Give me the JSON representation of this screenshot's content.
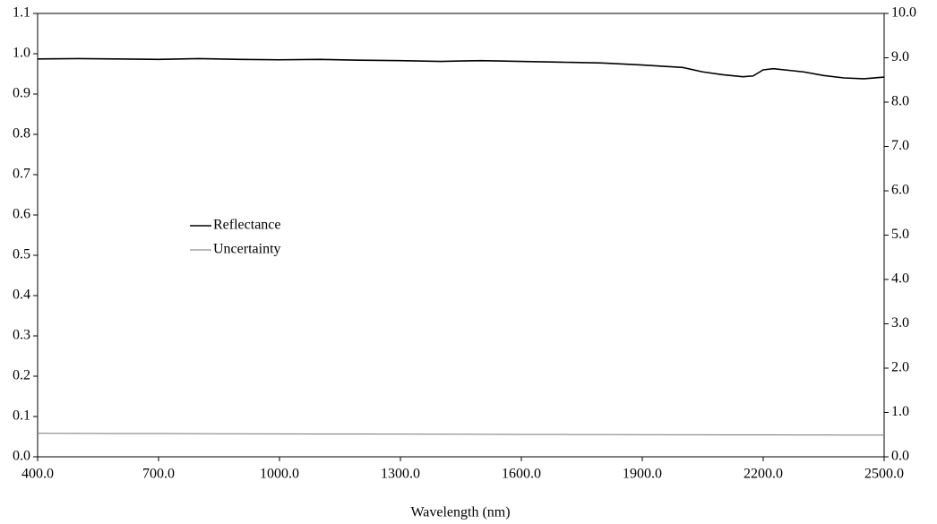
{
  "chart_data": {
    "type": "line",
    "xlabel": "Wavelength (nm)",
    "x": [
      400,
      500,
      600,
      700,
      800,
      900,
      1000,
      1100,
      1200,
      1300,
      1400,
      1500,
      1600,
      1700,
      1800,
      1900,
      2000,
      2050,
      2100,
      2150,
      2175,
      2200,
      2225,
      2300,
      2350,
      2400,
      2450,
      2500
    ],
    "series": [
      {
        "name": "Reflectance",
        "color": "#000000",
        "values": [
          0.987,
          0.988,
          0.987,
          0.986,
          0.988,
          0.986,
          0.985,
          0.986,
          0.984,
          0.983,
          0.981,
          0.983,
          0.981,
          0.979,
          0.977,
          0.972,
          0.966,
          0.955,
          0.948,
          0.943,
          0.945,
          0.96,
          0.963,
          0.955,
          0.946,
          0.94,
          0.938,
          0.942
        ]
      },
      {
        "name": "Uncertainty",
        "color": "#777777",
        "axis": "y2",
        "values": [
          0.53,
          0.528,
          0.526,
          0.524,
          0.522,
          0.52,
          0.518,
          0.516,
          0.514,
          0.512,
          0.51,
          0.508,
          0.506,
          0.504,
          0.502,
          0.5,
          0.498,
          0.497,
          0.496,
          0.495,
          0.495,
          0.494,
          0.494,
          0.493,
          0.492,
          0.491,
          0.49,
          0.49
        ]
      }
    ],
    "xlim": [
      400,
      2500
    ],
    "xticks": [
      {
        "value": 400,
        "label": "400.0"
      },
      {
        "value": 700,
        "label": "700.0"
      },
      {
        "value": 1000,
        "label": "1000.0"
      },
      {
        "value": 1300,
        "label": "1300.0"
      },
      {
        "value": 1600,
        "label": "1600.0"
      },
      {
        "value": 1900,
        "label": "1900.0"
      },
      {
        "value": 2200,
        "label": "2200.0"
      },
      {
        "value": 2500,
        "label": "2500.0"
      }
    ],
    "ylim": [
      0,
      1.1
    ],
    "yticks": [
      {
        "value": 0,
        "label": "0.0"
      },
      0.1,
      0.2,
      0.3,
      0.4,
      0.5,
      0.6,
      0.7,
      0.8,
      0.9,
      {
        "value": 1,
        "label": "1.0"
      },
      1.1
    ],
    "y2lim": [
      0,
      10
    ],
    "y2ticks": [
      {
        "value": 0,
        "label": "0.0"
      },
      {
        "value": 1,
        "label": "1.0"
      },
      {
        "value": 2,
        "label": "2.0"
      },
      {
        "value": 3,
        "label": "3.0"
      },
      {
        "value": 4,
        "label": "4.0"
      },
      {
        "value": 5,
        "label": "5.0"
      },
      {
        "value": 6,
        "label": "6.0"
      },
      {
        "value": 7,
        "label": "7.0"
      },
      {
        "value": 8,
        "label": "8.0"
      },
      {
        "value": 9,
        "label": "9.0"
      },
      {
        "value": 10,
        "label": "10.0"
      }
    ],
    "grid": false,
    "legend": "left"
  }
}
